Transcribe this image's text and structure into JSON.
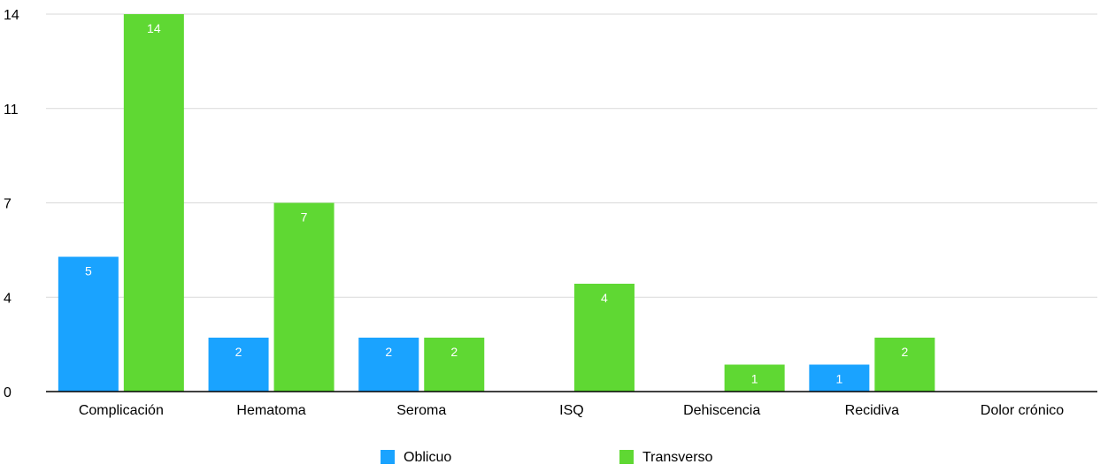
{
  "chart_data": {
    "type": "bar",
    "categories": [
      "Complicación",
      "Hematoma",
      "Seroma",
      "ISQ",
      "Dehiscencia",
      "Recidiva",
      "Dolor crónico"
    ],
    "series": [
      {
        "name": "Oblicuo",
        "color": "#1AA3FF",
        "values": [
          5,
          2,
          2,
          null,
          null,
          1,
          null
        ],
        "labels": [
          "5",
          "2",
          "2",
          "",
          "",
          "1",
          ""
        ],
        "bar_heights": [
          5,
          2,
          2,
          0,
          0,
          1,
          0
        ]
      },
      {
        "name": "Transverso",
        "color": "#5FD833",
        "values": [
          14,
          7,
          2,
          4,
          1,
          2,
          null
        ],
        "labels": [
          "14",
          "7",
          "2",
          "4",
          "1",
          "2",
          ""
        ],
        "bar_heights": [
          14,
          7,
          2,
          4,
          1,
          2,
          0
        ]
      }
    ],
    "y_ticks": [
      {
        "value": 0,
        "label": "0"
      },
      {
        "value": 3.5,
        "label": "4"
      },
      {
        "value": 7,
        "label": "7"
      },
      {
        "value": 10.5,
        "label": "11"
      },
      {
        "value": 14,
        "label": "14"
      }
    ],
    "ylim": [
      0,
      14
    ],
    "title": "",
    "xlabel": "",
    "ylabel": "",
    "grid": true,
    "legend_position": "bottom-center",
    "colors": {
      "gridline": "#D9D9D9",
      "axis": "#000000",
      "text": "#000000",
      "data_label": "#ffffff"
    }
  }
}
